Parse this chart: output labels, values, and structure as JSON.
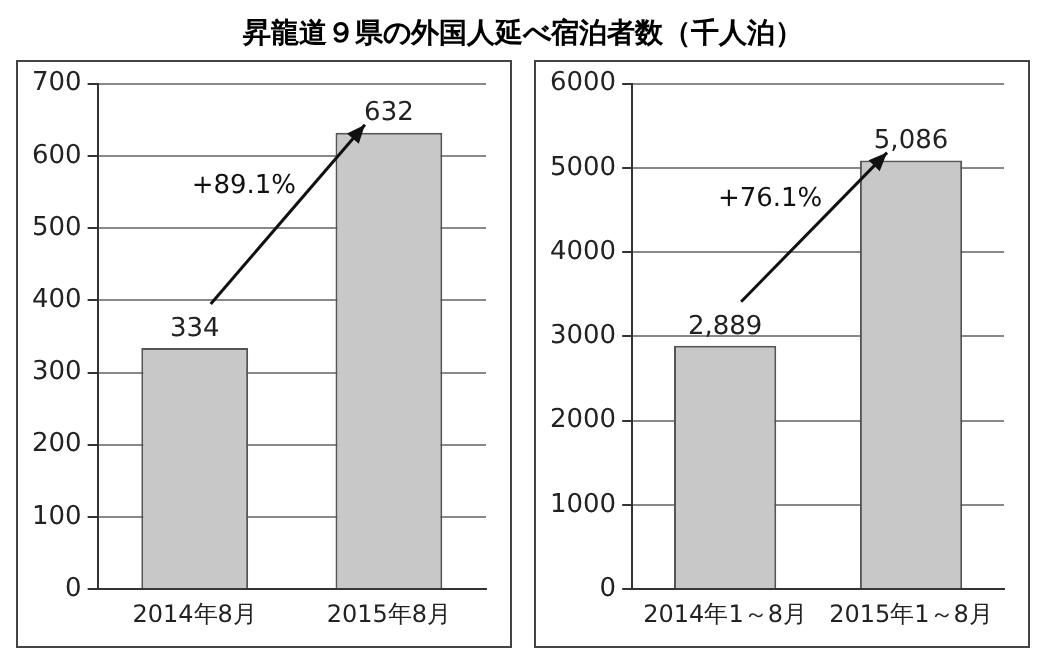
{
  "chart_data": [
    {
      "type": "bar",
      "title": "昇龍道９県の外国人延べ宿泊者数（千人泊）",
      "categories": [
        "2014年8月",
        "2015年8月"
      ],
      "values": [
        334,
        632
      ],
      "value_labels": [
        "334",
        "632"
      ],
      "color": "#c8c8c8",
      "ylim": [
        0,
        700
      ],
      "yticks": [
        0,
        100,
        200,
        300,
        400,
        500,
        600,
        700
      ],
      "grid": "y",
      "annotations": [
        "+89.1%"
      ]
    },
    {
      "type": "bar",
      "categories": [
        "2014年1～8月",
        "2015年1～8月"
      ],
      "values": [
        2889,
        5086
      ],
      "value_labels": [
        "2,889",
        "5,086"
      ],
      "color": "#c8c8c8",
      "ylim": [
        0,
        6000
      ],
      "yticks": [
        0,
        1000,
        2000,
        3000,
        4000,
        5000,
        6000
      ],
      "grid": "y",
      "annotations": [
        "+76.1%"
      ]
    }
  ]
}
